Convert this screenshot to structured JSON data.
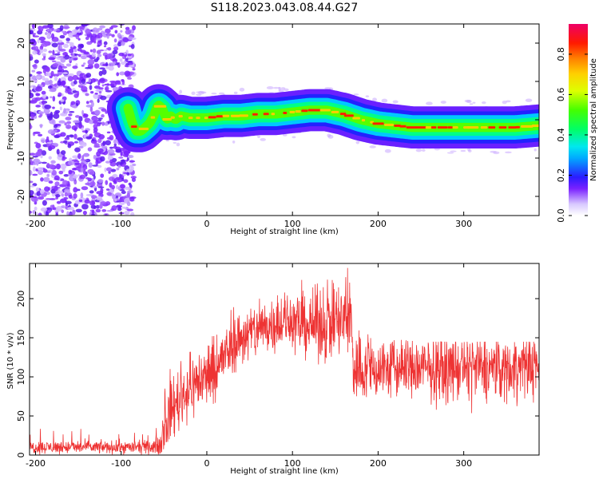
{
  "title": "S118.2023.043.08.44.G27",
  "chart_data": [
    {
      "type": "heatmap",
      "xlabel": "Height of straight line (km)",
      "ylabel": "Frequency (Hz)",
      "xlim": [
        -207,
        388
      ],
      "ylim": [
        -25,
        25
      ],
      "xticks": [
        -200,
        -100,
        0,
        100,
        200,
        300
      ],
      "yticks": [
        -20,
        -10,
        0,
        10,
        20
      ],
      "grid": false,
      "ridge": {
        "x": [
          -92,
          -87,
          -82,
          -77,
          -72,
          -67,
          -62,
          -57,
          -52,
          -47,
          -42,
          -37,
          -30,
          -20,
          -10,
          0,
          20,
          40,
          60,
          80,
          100,
          120,
          140,
          160,
          180,
          200,
          220,
          240,
          260,
          280,
          300,
          320,
          340,
          360,
          388
        ],
        "y": [
          3,
          -1,
          -3,
          -3,
          -2,
          -1,
          1,
          4,
          3,
          0,
          1,
          0,
          1,
          0.5,
          0.5,
          0.5,
          1,
          1,
          1.5,
          1.5,
          2,
          2.5,
          2.5,
          1.5,
          0,
          -1,
          -1.5,
          -2,
          -2,
          -2,
          -2,
          -2,
          -2,
          -2,
          -1.5
        ]
      },
      "noise_region": [
        -207,
        -85
      ],
      "colorbar": {
        "label": "Normalized spectral amplitude",
        "ticks": [
          0.0,
          0.2,
          0.4,
          0.6,
          0.8
        ],
        "tick_labels": [
          "0.0",
          "0.2",
          "0.4",
          "0.6",
          "0.8"
        ],
        "range": [
          0,
          0.95
        ]
      }
    },
    {
      "type": "line",
      "xlabel": "Height of straight line (km)",
      "ylabel": "SNR (10 * v/v)",
      "xlim": [
        -207,
        388
      ],
      "ylim": [
        0,
        245
      ],
      "xticks": [
        -200,
        -100,
        0,
        100,
        200,
        300
      ],
      "yticks": [
        0,
        50,
        100,
        150,
        200
      ],
      "series_color": "#ee3333",
      "envelope": {
        "x": [
          -207,
          -150,
          -100,
          -60,
          -55,
          -50,
          -40,
          -30,
          -20,
          -10,
          0,
          10,
          20,
          30,
          40,
          60,
          80,
          100,
          120,
          140,
          160,
          168,
          172,
          180,
          200,
          250,
          300,
          350,
          388
        ],
        "mean": [
          10,
          10,
          10,
          10,
          15,
          35,
          60,
          75,
          85,
          95,
          100,
          110,
          125,
          140,
          150,
          160,
          170,
          170,
          165,
          170,
          170,
          175,
          110,
          110,
          110,
          110,
          110,
          110,
          115
        ],
        "spread": [
          4,
          4,
          4,
          4,
          8,
          15,
          20,
          20,
          20,
          20,
          20,
          20,
          18,
          18,
          18,
          18,
          18,
          18,
          20,
          25,
          25,
          30,
          25,
          20,
          20,
          20,
          20,
          20,
          20
        ],
        "max": [
          35,
          38,
          30,
          28,
          60,
          90,
          120,
          130,
          135,
          140,
          150,
          160,
          175,
          190,
          200,
          210,
          215,
          215,
          240,
          235,
          245,
          245,
          210,
          160,
          150,
          145,
          145,
          145,
          145
        ]
      }
    }
  ]
}
